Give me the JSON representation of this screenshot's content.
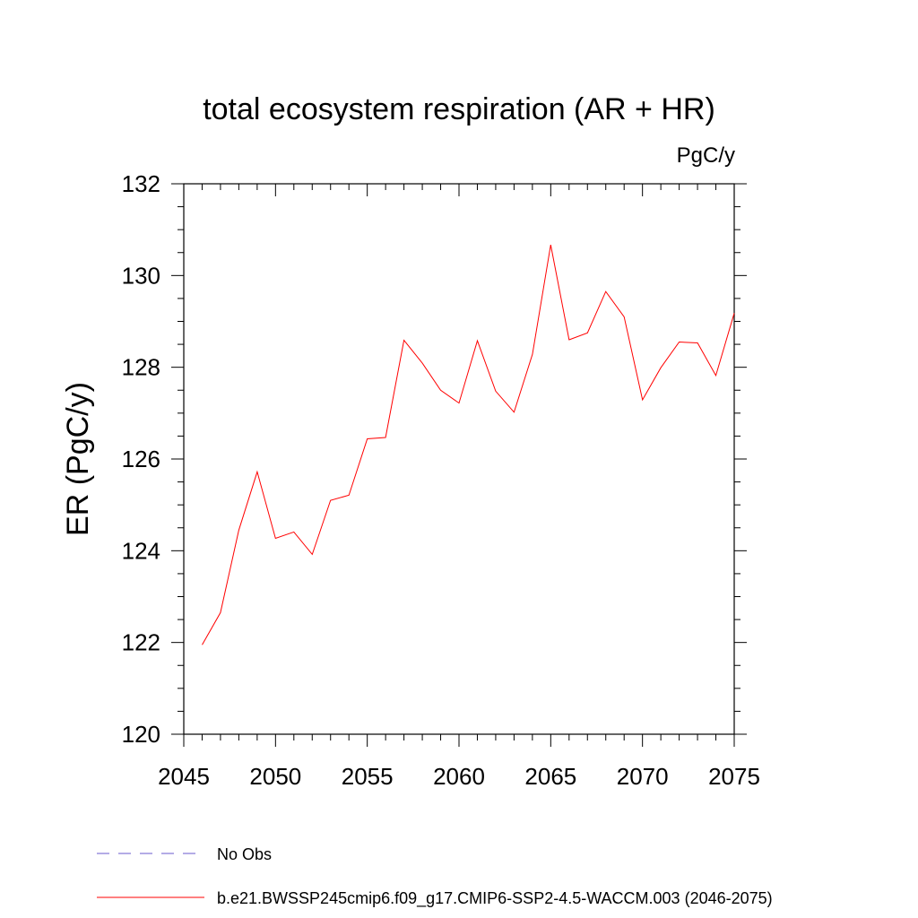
{
  "chart_data": {
    "type": "line",
    "title": "total ecosystem respiration (AR + HR)",
    "units_label": "PgC/y",
    "ylabel": "ER  (PgC/y)",
    "xlabel": "",
    "xlim": [
      2045,
      2075
    ],
    "ylim": [
      120,
      132
    ],
    "xticks": [
      2045,
      2050,
      2055,
      2060,
      2065,
      2070,
      2075
    ],
    "yticks": [
      120,
      122,
      124,
      126,
      128,
      130,
      132
    ],
    "x": [
      2046,
      2047,
      2048,
      2049,
      2050,
      2051,
      2052,
      2053,
      2054,
      2055,
      2056,
      2057,
      2058,
      2059,
      2060,
      2061,
      2062,
      2063,
      2064,
      2065,
      2066,
      2067,
      2068,
      2069,
      2070,
      2071,
      2072,
      2073,
      2074,
      2075
    ],
    "series": [
      {
        "name": "b.e21.BWSSP245cmip6.f09_g17.CMIP6-SSP2-4.5-WACCM.003 (2046-2075)",
        "color": "#ff0000",
        "values": [
          121.95,
          122.65,
          124.45,
          125.72,
          124.27,
          124.41,
          123.92,
          125.1,
          125.21,
          126.44,
          126.47,
          128.59,
          128.09,
          127.5,
          127.22,
          128.58,
          127.48,
          127.02,
          128.28,
          130.67,
          128.6,
          128.75,
          129.65,
          129.1,
          127.29,
          127.99,
          128.55,
          128.53,
          127.82,
          129.18
        ]
      }
    ],
    "legend": [
      {
        "label": "No Obs",
        "style": "dashed",
        "color": "#6a5acd"
      },
      {
        "label": "b.e21.BWSSP245cmip6.f09_g17.CMIP6-SSP2-4.5-WACCM.003 (2046-2075)",
        "style": "solid",
        "color": "#ff0000"
      }
    ]
  }
}
